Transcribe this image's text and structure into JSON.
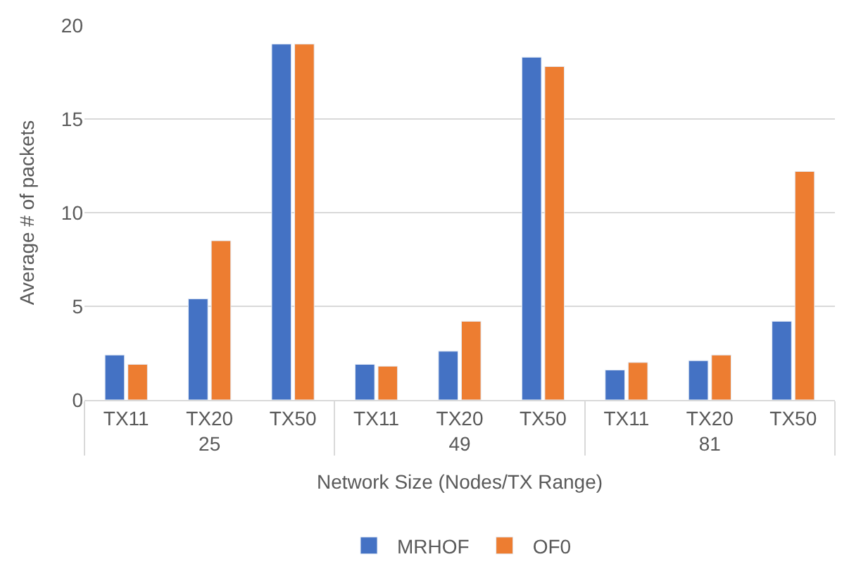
{
  "chart_data": {
    "type": "bar",
    "categories": [
      "TX11",
      "TX20",
      "TX50",
      "TX11",
      "TX20",
      "TX50",
      "TX11",
      "TX20",
      "TX50"
    ],
    "annotations": [
      "25",
      "49",
      "81"
    ],
    "xlabel": "Network Size (Nodes/TX Range)",
    "ylabel": "Average # of packets",
    "series": [
      {
        "name": "MRHOF",
        "color": "#4472c4",
        "values": [
          2.4,
          5.4,
          19.0,
          1.9,
          2.6,
          18.3,
          1.6,
          2.1,
          4.2
        ]
      },
      {
        "name": "OF0",
        "color": "#ed7d31",
        "values": [
          1.9,
          8.5,
          19.0,
          1.8,
          4.2,
          17.8,
          2.0,
          2.4,
          12.2
        ]
      }
    ],
    "ylim": [
      0,
      20
    ],
    "yticks": [
      0,
      5,
      10,
      15,
      20
    ],
    "grid": "y",
    "legend": "bottom"
  }
}
